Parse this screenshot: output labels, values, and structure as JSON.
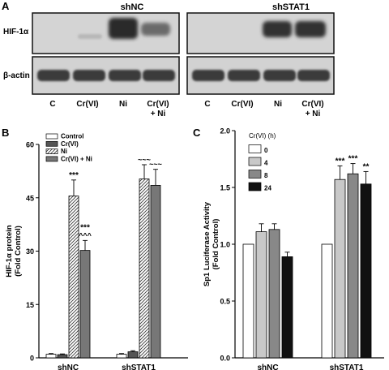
{
  "panel_a": {
    "letter": "A",
    "blots": [
      {
        "group": "shNC"
      },
      {
        "group": "shSTAT1"
      }
    ],
    "row_labels": {
      "hif": "HIF-1α",
      "actin": "β-actin"
    },
    "lanes": [
      "C",
      "Cr(VI)",
      "Ni",
      "Cr(VI)",
      "+ Ni"
    ]
  },
  "chart_data": [
    {
      "panel": "B",
      "type": "bar",
      "categories": [
        "shNC",
        "shSTAT1"
      ],
      "ylabel": "HIF-1α protein (Fold Control)",
      "ylabel_lines": [
        "HIF-1α protein",
        "(Fold Control)"
      ],
      "ylim": [
        0,
        60
      ],
      "ticks": [
        "0",
        "15",
        "30",
        "45",
        "60"
      ],
      "legend": {
        "placement": "top-left",
        "entries": [
          "Control",
          "Cr(VI)",
          "Ni",
          "Cr(VI) + Ni"
        ]
      },
      "series": [
        {
          "name": "Control",
          "values": [
            1.0,
            1.0
          ],
          "errors": [
            0.2,
            0.2
          ],
          "fill": "#ffffff",
          "annotations": [
            "",
            ""
          ]
        },
        {
          "name": "Cr(VI)",
          "values": [
            0.9,
            1.7
          ],
          "errors": [
            0.2,
            0.3
          ],
          "fill": "#555555",
          "annotations": [
            "",
            ""
          ]
        },
        {
          "name": "Ni",
          "values": [
            45.5,
            50.3
          ],
          "errors": [
            4.5,
            4.0
          ],
          "fill": "hatch",
          "annotations": [
            "***",
            "~~~"
          ]
        },
        {
          "name": "Cr(VI) + Ni",
          "values": [
            30.2,
            48.5
          ],
          "errors": [
            2.8,
            4.5
          ],
          "fill": "#777777",
          "annotations": [
            "***|^^^",
            "~~~"
          ]
        }
      ]
    },
    {
      "panel": "C",
      "type": "bar",
      "categories": [
        "shNC",
        "shSTAT1"
      ],
      "ylabel": "Sp1 Luciferase Activity (Fold Control)",
      "ylabel_lines": [
        "Sp1 Luciferase Activity",
        "(Fold Control)"
      ],
      "ylim": [
        0,
        2.0
      ],
      "ticks": [
        "0.0",
        "0.5",
        "1.0",
        "1.5",
        "2.0"
      ],
      "legend": {
        "placement": "top-left",
        "title": "Cr(VI) (h)",
        "entries": [
          "0",
          "4",
          "8",
          "24"
        ]
      },
      "series": [
        {
          "name": "0",
          "values": [
            1.0,
            1.0
          ],
          "errors": [
            0,
            0
          ],
          "fill": "#ffffff",
          "annotations": [
            "",
            ""
          ]
        },
        {
          "name": "4",
          "values": [
            1.11,
            1.57
          ],
          "errors": [
            0.07,
            0.12
          ],
          "fill": "#c8c8c8",
          "annotations": [
            "",
            "***"
          ]
        },
        {
          "name": "8",
          "values": [
            1.13,
            1.62
          ],
          "errors": [
            0.05,
            0.09
          ],
          "fill": "#888888",
          "annotations": [
            "",
            "***"
          ]
        },
        {
          "name": "24",
          "values": [
            0.89,
            1.53
          ],
          "errors": [
            0.04,
            0.11
          ],
          "fill": "#111111",
          "annotations": [
            "",
            "**"
          ]
        }
      ]
    }
  ]
}
